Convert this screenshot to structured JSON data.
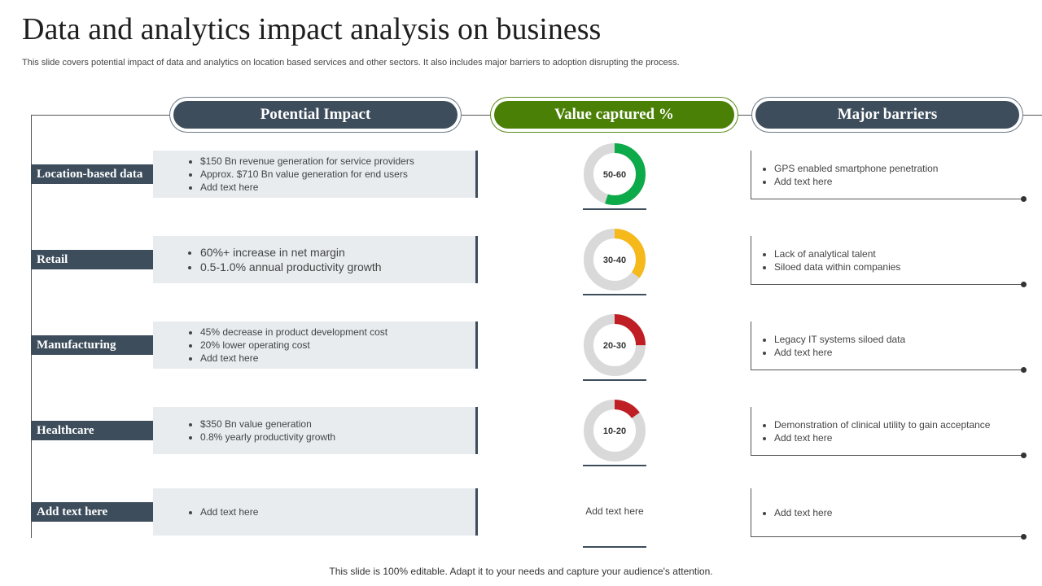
{
  "title": "Data and analytics impact analysis on business",
  "subtitle": "This slide covers potential impact of data and analytics on location based services and other sectors. It also includes major barriers to adoption disrupting the process.",
  "footer": "This slide is 100% editable. Adapt it to your needs and capture your audience's attention.",
  "headers": {
    "impact": "Potential Impact",
    "value": "Value captured %",
    "barriers": "Major barriers"
  },
  "colors": {
    "dark": "#3d4d5c",
    "green_header": "#4a8005",
    "ring_track": "#d9d9d9"
  },
  "rows": [
    {
      "label": "Location-based data",
      "impact": [
        "$150 Bn revenue  generation  for  service  providers",
        "Approx. $710  Bn value  generation  for end users",
        "Add text here"
      ],
      "value_label": "50-60",
      "value_fraction": 0.55,
      "value_color": "#0daa4a",
      "barriers": [
        "GPS enabled  smartphone  penetration",
        "Add text here"
      ]
    },
    {
      "label": "Retail",
      "impact": [
        "60%+ increase in net margin",
        "0.5-1.0% annual productivity growth"
      ],
      "value_label": "30-40",
      "value_fraction": 0.35,
      "value_color": "#f6b91b",
      "barriers": [
        "Lack of analytical talent",
        "Siloed data  within companies"
      ]
    },
    {
      "label": "Manufacturing",
      "impact": [
        "45% decrease  in product  development   cost",
        "20% lower  operating cost",
        "Add text here"
      ],
      "value_label": "20-30",
      "value_fraction": 0.25,
      "value_color": "#be1e24",
      "barriers": [
        "Legacy IT  systems siloed data",
        "Add text here"
      ]
    },
    {
      "label": "Healthcare",
      "impact": [
        "$350  Bn value  generation",
        "0.8% yearly productivity  growth"
      ],
      "value_label": "10-20",
      "value_fraction": 0.15,
      "value_color": "#be1e24",
      "barriers": [
        "Demonstration  of clinical utility to gain acceptance",
        "Add text here"
      ]
    },
    {
      "label": "Add text here",
      "impact": [
        "Add text here"
      ],
      "value_text": "Add text here",
      "barriers": [
        "Add text here"
      ]
    }
  ]
}
